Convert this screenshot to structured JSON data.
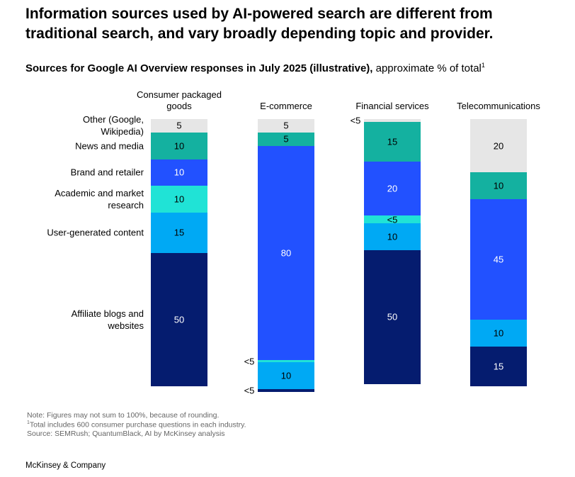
{
  "chart_data": {
    "type": "stacked-bar",
    "title": "Information sources used by AI-powered search are different from traditional search, and vary broadly depending topic and provider.",
    "subtitle": "Sources for Google AI Overview responses in July 2025 (illustrative),",
    "subtitle_unit": "approximate % of total",
    "subtitle_marker": "1",
    "categories": [
      "Consumer packaged goods",
      "E-commerce",
      "Financial services",
      "Telecommunications"
    ],
    "series": [
      {
        "name": "Other (Google, Wikipedia)",
        "color": "#e6e6e6",
        "values": [
          5,
          5,
          1,
          20
        ],
        "value_labels": [
          null,
          null,
          "<5",
          null
        ]
      },
      {
        "name": "News and media",
        "color": "#14b1a0",
        "values": [
          10,
          5,
          15,
          10
        ]
      },
      {
        "name": "Brand and retailer",
        "color": "#2251ff",
        "values": [
          10,
          80,
          20,
          45
        ]
      },
      {
        "name": "Academic and market research",
        "color": "#20e3d6",
        "values": [
          10,
          1,
          3,
          null
        ],
        "value_labels": [
          null,
          "<5",
          "<5",
          null
        ]
      },
      {
        "name": "User-generated content",
        "color": "#00a9f4",
        "values": [
          15,
          10,
          10,
          10
        ]
      },
      {
        "name": "Affiliate blogs and websites",
        "color": "#051c6f",
        "values": [
          50,
          1,
          50,
          15
        ],
        "value_labels": [
          null,
          "<5",
          null,
          null
        ]
      }
    ],
    "notes": [
      "Note: Figures may not sum to 100%, because of rounding.",
      "Total includes 600 consumer purchase questions in each industry.",
      "Source: SEMRush; QuantumBlack, AI by McKinsey analysis"
    ],
    "notes_marker": "1",
    "footer": "McKinsey & Company"
  }
}
